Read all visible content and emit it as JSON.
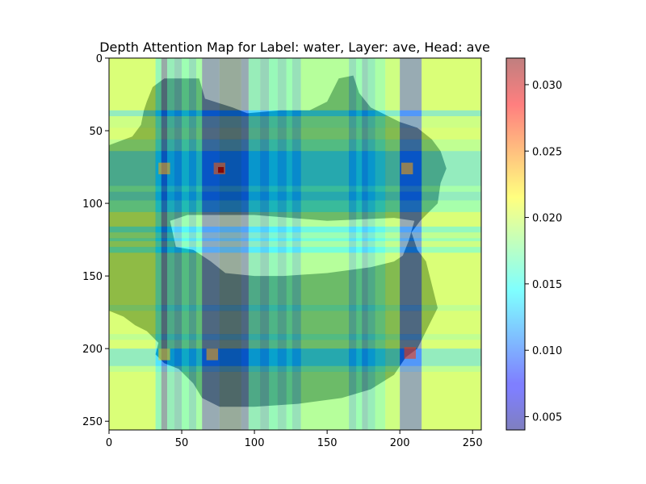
{
  "chart_data": {
    "type": "heatmap",
    "title": "Depth Attention Map for Label: water, Layer: ave, Head: ave",
    "xlabel": "",
    "ylabel": "",
    "xlim": [
      0,
      256
    ],
    "ylim": [
      256,
      0
    ],
    "x_ticks": [
      0,
      50,
      100,
      150,
      200,
      250
    ],
    "y_ticks": [
      0,
      50,
      100,
      150,
      200,
      250
    ],
    "colormap": "jet",
    "overlay_alpha": 0.5,
    "colorbar": {
      "min": 0.004,
      "max": 0.032,
      "ticks": [
        0.005,
        0.01,
        0.015,
        0.02,
        0.025,
        0.03
      ],
      "tick_labels": [
        "0.005",
        "0.010",
        "0.015",
        "0.020",
        "0.025",
        "0.030"
      ]
    },
    "column_values": [
      {
        "range": [
          0,
          32
        ],
        "value": 0.02
      },
      {
        "range": [
          32,
          36
        ],
        "value": 0.014
      },
      {
        "range": [
          36,
          40
        ],
        "value": 0.006
      },
      {
        "range": [
          40,
          45
        ],
        "value": 0.013
      },
      {
        "range": [
          45,
          50
        ],
        "value": 0.011
      },
      {
        "range": [
          50,
          55
        ],
        "value": 0.015
      },
      {
        "range": [
          55,
          60
        ],
        "value": 0.012
      },
      {
        "range": [
          60,
          64
        ],
        "value": 0.016
      },
      {
        "range": [
          64,
          76
        ],
        "value": 0.007
      },
      {
        "range": [
          76,
          91
        ],
        "value": 0.005
      },
      {
        "range": [
          91,
          96
        ],
        "value": 0.007
      },
      {
        "range": [
          96,
          104
        ],
        "value": 0.013
      },
      {
        "range": [
          104,
          110
        ],
        "value": 0.011
      },
      {
        "range": [
          110,
          116
        ],
        "value": 0.014
      },
      {
        "range": [
          116,
          122
        ],
        "value": 0.012
      },
      {
        "range": [
          122,
          126
        ],
        "value": 0.015
      },
      {
        "range": [
          126,
          132
        ],
        "value": 0.012
      },
      {
        "range": [
          132,
          165
        ],
        "value": 0.017
      },
      {
        "range": [
          165,
          170
        ],
        "value": 0.012
      },
      {
        "range": [
          170,
          174
        ],
        "value": 0.015
      },
      {
        "range": [
          174,
          178
        ],
        "value": 0.011
      },
      {
        "range": [
          178,
          183
        ],
        "value": 0.013
      },
      {
        "range": [
          183,
          190
        ],
        "value": 0.016
      },
      {
        "range": [
          190,
          200
        ],
        "value": 0.019
      },
      {
        "range": [
          200,
          215
        ],
        "value": 0.007
      },
      {
        "range": [
          215,
          256
        ],
        "value": 0.02
      }
    ],
    "row_values": [
      {
        "range": [
          0,
          36
        ],
        "value": 0.02
      },
      {
        "range": [
          36,
          40
        ],
        "value": 0.013
      },
      {
        "range": [
          40,
          48
        ],
        "value": 0.019
      },
      {
        "range": [
          48,
          56
        ],
        "value": 0.02
      },
      {
        "range": [
          56,
          64
        ],
        "value": 0.018
      },
      {
        "range": [
          64,
          88
        ],
        "value": 0.013
      },
      {
        "range": [
          88,
          92
        ],
        "value": 0.016
      },
      {
        "range": [
          92,
          98
        ],
        "value": 0.013
      },
      {
        "range": [
          98,
          106
        ],
        "value": 0.016
      },
      {
        "range": [
          106,
          116
        ],
        "value": 0.02
      },
      {
        "range": [
          116,
          120
        ],
        "value": 0.014
      },
      {
        "range": [
          120,
          124
        ],
        "value": 0.018
      },
      {
        "range": [
          124,
          126
        ],
        "value": 0.015
      },
      {
        "range": [
          126,
          130
        ],
        "value": 0.019
      },
      {
        "range": [
          130,
          134
        ],
        "value": 0.015
      },
      {
        "range": [
          134,
          170
        ],
        "value": 0.02
      },
      {
        "range": [
          170,
          174
        ],
        "value": 0.018
      },
      {
        "range": [
          174,
          190
        ],
        "value": 0.02
      },
      {
        "range": [
          190,
          194
        ],
        "value": 0.018
      },
      {
        "range": [
          194,
          200
        ],
        "value": 0.02
      },
      {
        "range": [
          200,
          212
        ],
        "value": 0.013
      },
      {
        "range": [
          212,
          216
        ],
        "value": 0.018
      },
      {
        "range": [
          216,
          256
        ],
        "value": 0.02
      }
    ],
    "peak": {
      "x": 77,
      "y": 77,
      "value": 0.032
    },
    "hot_spots": [
      {
        "x": 76,
        "y": 76,
        "value": 0.026
      },
      {
        "x": 38,
        "y": 76,
        "value": 0.024
      },
      {
        "x": 205,
        "y": 76,
        "value": 0.024
      },
      {
        "x": 71,
        "y": 204,
        "value": 0.024
      },
      {
        "x": 207,
        "y": 203,
        "value": 0.027
      },
      {
        "x": 38,
        "y": 204,
        "value": 0.023
      }
    ],
    "region_mask": {
      "description": "",
      "outline": [
        [
          38,
          14
        ],
        [
          62,
          14
        ],
        [
          66,
          28
        ],
        [
          85,
          34
        ],
        [
          95,
          38
        ],
        [
          118,
          36
        ],
        [
          138,
          36
        ],
        [
          150,
          30
        ],
        [
          158,
          14
        ],
        [
          168,
          12
        ],
        [
          172,
          24
        ],
        [
          180,
          34
        ],
        [
          200,
          44
        ],
        [
          212,
          48
        ],
        [
          222,
          56
        ],
        [
          228,
          64
        ],
        [
          232,
          76
        ],
        [
          228,
          86
        ],
        [
          226,
          100
        ],
        [
          220,
          106
        ],
        [
          214,
          112
        ],
        [
          208,
          120
        ],
        [
          212,
          132
        ],
        [
          218,
          140
        ],
        [
          222,
          156
        ],
        [
          226,
          172
        ],
        [
          218,
          188
        ],
        [
          212,
          200
        ],
        [
          204,
          206
        ],
        [
          196,
          218
        ],
        [
          180,
          228
        ],
        [
          160,
          234
        ],
        [
          130,
          238
        ],
        [
          100,
          240
        ],
        [
          76,
          240
        ],
        [
          64,
          234
        ],
        [
          58,
          224
        ],
        [
          48,
          214
        ],
        [
          38,
          210
        ],
        [
          32,
          204
        ],
        [
          34,
          196
        ],
        [
          26,
          188
        ],
        [
          18,
          184
        ],
        [
          10,
          178
        ],
        [
          0,
          174
        ],
        [
          0,
          86
        ],
        [
          0,
          60
        ],
        [
          16,
          54
        ],
        [
          22,
          46
        ],
        [
          24,
          36
        ],
        [
          26,
          30
        ],
        [
          30,
          20
        ]
      ],
      "inner_outline": [
        [
          42,
          112
        ],
        [
          54,
          108
        ],
        [
          100,
          108
        ],
        [
          150,
          112
        ],
        [
          196,
          110
        ],
        [
          210,
          112
        ],
        [
          206,
          126
        ],
        [
          202,
          136
        ],
        [
          196,
          140
        ],
        [
          180,
          144
        ],
        [
          150,
          148
        ],
        [
          120,
          150
        ],
        [
          100,
          150
        ],
        [
          80,
          148
        ],
        [
          70,
          140
        ],
        [
          58,
          132
        ],
        [
          46,
          130
        ]
      ]
    }
  }
}
